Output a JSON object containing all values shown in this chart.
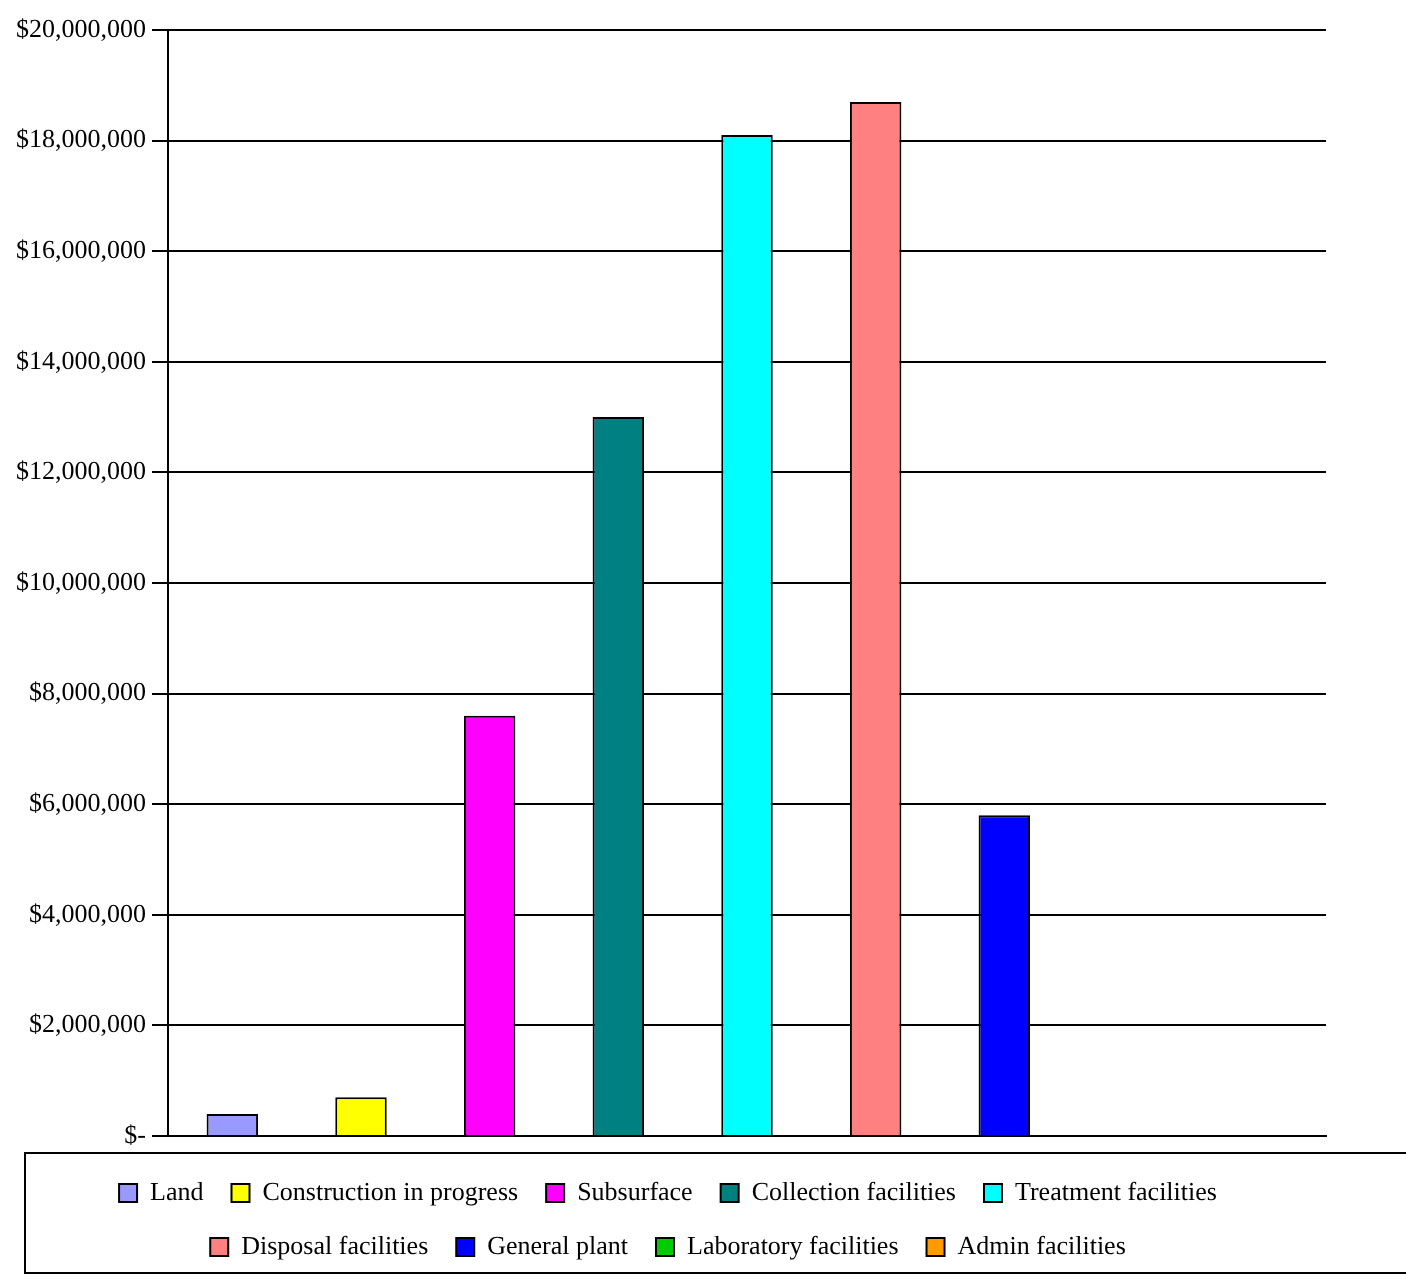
{
  "chart_data": {
    "type": "bar",
    "categories": [
      null,
      null,
      null,
      null,
      null,
      null,
      null,
      null,
      null
    ],
    "series": [
      {
        "name": "Land",
        "color": "#9999ff",
        "values": [
          400000,
          null,
          null,
          null,
          null,
          null,
          null,
          null,
          null
        ]
      },
      {
        "name": "Construction in progress",
        "color": "#ffff00",
        "values": [
          null,
          700000,
          null,
          null,
          null,
          null,
          null,
          null,
          null
        ]
      },
      {
        "name": "Subsurface",
        "color": "#ff00ff",
        "values": [
          null,
          null,
          7600000,
          null,
          null,
          null,
          null,
          null,
          null
        ]
      },
      {
        "name": "Collection facilities",
        "color": "#008080",
        "values": [
          null,
          null,
          null,
          13000000,
          null,
          null,
          null,
          null,
          null
        ]
      },
      {
        "name": "Treatment facilities",
        "color": "#00ffff",
        "values": [
          null,
          null,
          null,
          null,
          18100000,
          null,
          null,
          null,
          null
        ]
      },
      {
        "name": "Disposal facilities",
        "color": "#ff8080",
        "values": [
          null,
          null,
          null,
          null,
          null,
          18700000,
          null,
          null,
          null
        ]
      },
      {
        "name": "General plant",
        "color": "#0000ff",
        "values": [
          null,
          null,
          null,
          null,
          null,
          null,
          5800000,
          null,
          null
        ]
      },
      {
        "name": "Laboratory facilities",
        "color": "#00cc00",
        "values": [
          null,
          null,
          null,
          null,
          null,
          null,
          null,
          0,
          null
        ]
      },
      {
        "name": "Admin facilities",
        "color": "#ff9900",
        "values": [
          null,
          null,
          null,
          null,
          null,
          null,
          null,
          null,
          0
        ]
      }
    ],
    "ylim": [
      0,
      20000000
    ],
    "yticks": [
      {
        "value": 0,
        "label": "$-"
      },
      {
        "value": 2000000,
        "label": "$2,000,000"
      },
      {
        "value": 4000000,
        "label": "$4,000,000"
      },
      {
        "value": 6000000,
        "label": "$6,000,000"
      },
      {
        "value": 8000000,
        "label": "$8,000,000"
      },
      {
        "value": 10000000,
        "label": "$10,000,000"
      },
      {
        "value": 12000000,
        "label": "$12,000,000"
      },
      {
        "value": 14000000,
        "label": "$14,000,000"
      },
      {
        "value": 16000000,
        "label": "$16,000,000"
      },
      {
        "value": 18000000,
        "label": "$18,000,000"
      },
      {
        "value": 20000000,
        "label": "$20,000,000"
      }
    ],
    "grid": "y",
    "legend": "bottom",
    "tick_labels": "y"
  }
}
